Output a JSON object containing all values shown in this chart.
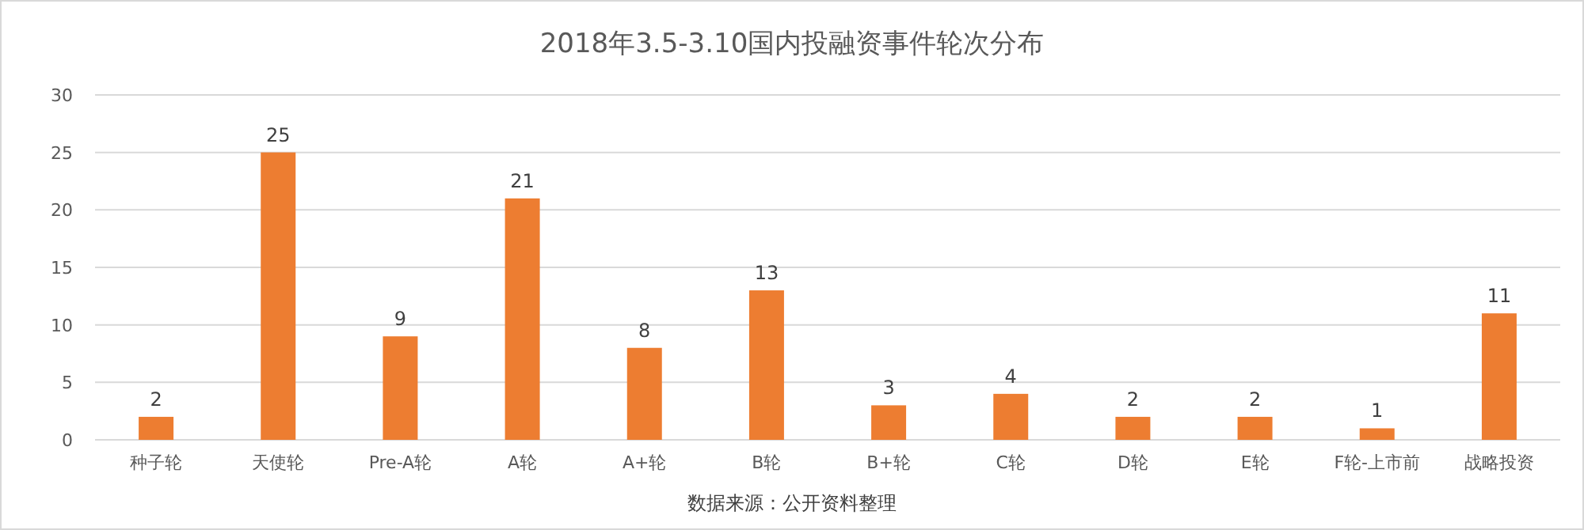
{
  "chart_data": {
    "type": "bar",
    "title": "2018年3.5-3.10国内投融资事件轮次分布",
    "categories": [
      "种子轮",
      "天使轮",
      "Pre-A轮",
      "A轮",
      "A+轮",
      "B轮",
      "B+轮",
      "C轮",
      "D轮",
      "E轮",
      "F轮-上市前",
      "战略投资"
    ],
    "values": [
      2,
      25,
      9,
      21,
      8,
      13,
      3,
      4,
      2,
      2,
      1,
      11
    ],
    "color": "#ed7d31",
    "ylim": [
      0,
      30
    ],
    "yticks": [
      0,
      5,
      10,
      15,
      20,
      25,
      30
    ],
    "grid": "y",
    "data_labels": true,
    "annotations": [
      "数据来源：公开资料整理"
    ]
  }
}
